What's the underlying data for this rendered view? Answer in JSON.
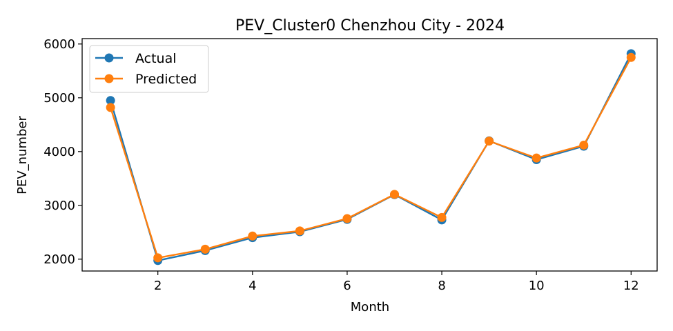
{
  "chart_data": {
    "type": "line",
    "title": "PEV_Cluster0 Chenzhou City - 2024",
    "xlabel": "Month",
    "ylabel": "PEV_number",
    "x": [
      1,
      2,
      3,
      4,
      5,
      6,
      7,
      8,
      9,
      10,
      11,
      12
    ],
    "xlim": [
      0.4,
      12.55
    ],
    "ylim": [
      1780,
      6100
    ],
    "xticks": [
      2,
      4,
      6,
      8,
      10,
      12
    ],
    "yticks": [
      2000,
      3000,
      4000,
      5000,
      6000
    ],
    "grid": false,
    "legend_position": "upper-left",
    "series": [
      {
        "name": "Actual",
        "color": "#1f77b4",
        "marker": "circle",
        "values": [
          4950,
          1975,
          2160,
          2400,
          2510,
          2740,
          3200,
          2730,
          4200,
          3850,
          4100,
          5820
        ]
      },
      {
        "name": "Predicted",
        "color": "#ff7f0e",
        "marker": "circle",
        "values": [
          4820,
          2025,
          2185,
          2430,
          2525,
          2755,
          3205,
          2775,
          4195,
          3880,
          4120,
          5750
        ]
      }
    ]
  }
}
